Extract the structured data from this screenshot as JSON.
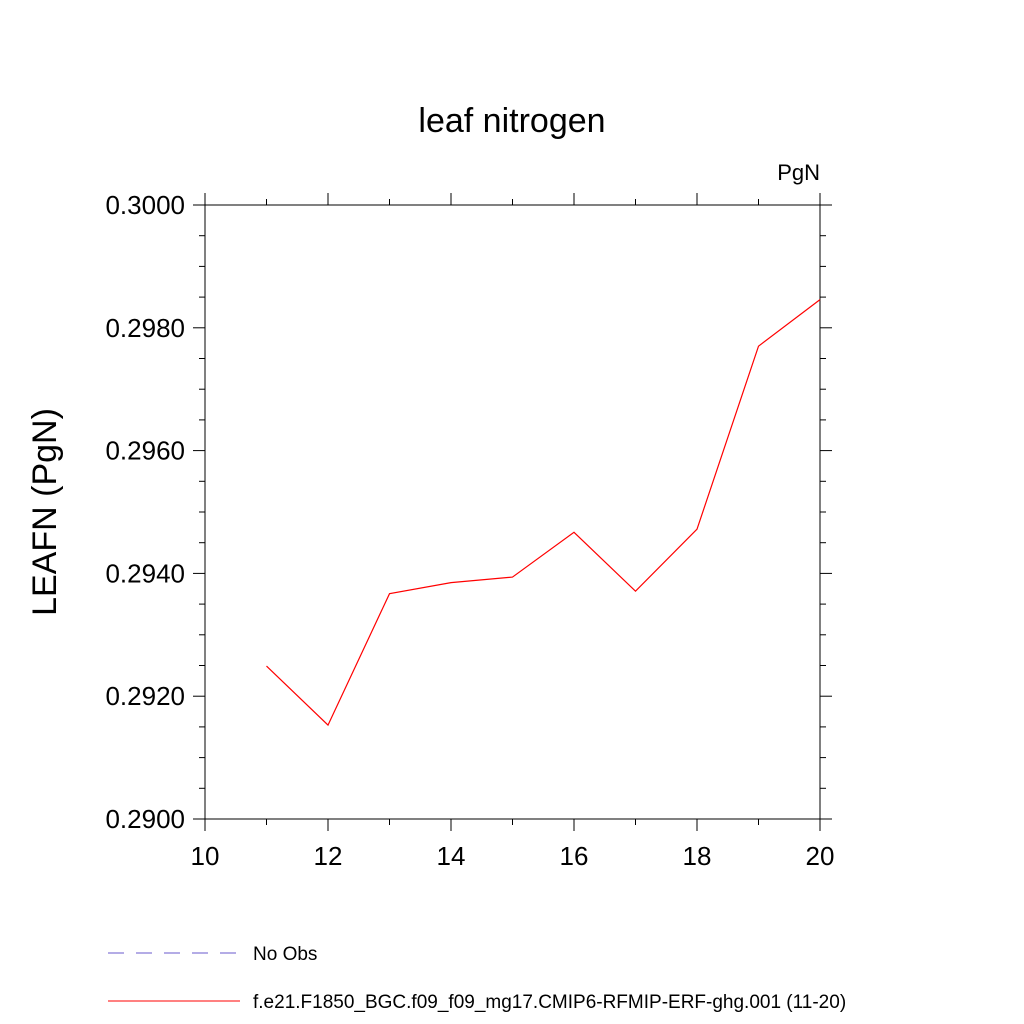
{
  "chart_data": {
    "type": "line",
    "title": "leaf nitrogen",
    "units": "PgN",
    "xlabel": "",
    "ylabel": "LEAFN  (PgN)",
    "xlim": [
      10,
      20
    ],
    "ylim": [
      0.29,
      0.3
    ],
    "x_ticks": [
      10,
      12,
      14,
      16,
      18,
      20
    ],
    "x_tick_labels": [
      "10",
      "12",
      "14",
      "16",
      "18",
      "20"
    ],
    "y_ticks": [
      0.29,
      0.292,
      0.294,
      0.296,
      0.298,
      0.3
    ],
    "y_tick_labels": [
      "0.2900",
      "0.2920",
      "0.2940",
      "0.2960",
      "0.2980",
      "0.3000"
    ],
    "grid": false,
    "legend_position": "bottom",
    "series": [
      {
        "name": "f.e21.F1850_BGC.f09_f09_mg17.CMIP6-RFMIP-ERF-ghg.001 (11-20)",
        "color": "#ff0000",
        "style": "solid",
        "x": [
          11,
          12,
          13,
          14,
          15,
          16,
          17,
          18,
          19,
          20
        ],
        "y": [
          0.29249,
          0.29153,
          0.29367,
          0.29385,
          0.29394,
          0.29467,
          0.29371,
          0.29472,
          0.2977,
          0.29846
        ]
      }
    ],
    "legend": [
      {
        "label": "No Obs",
        "color": "#6a5acd",
        "style": "dashed"
      },
      {
        "label": "f.e21.F1850_BGC.f09_f09_mg17.CMIP6-RFMIP-ERF-ghg.001 (11-20)",
        "color": "#ff0000",
        "style": "solid"
      }
    ]
  }
}
